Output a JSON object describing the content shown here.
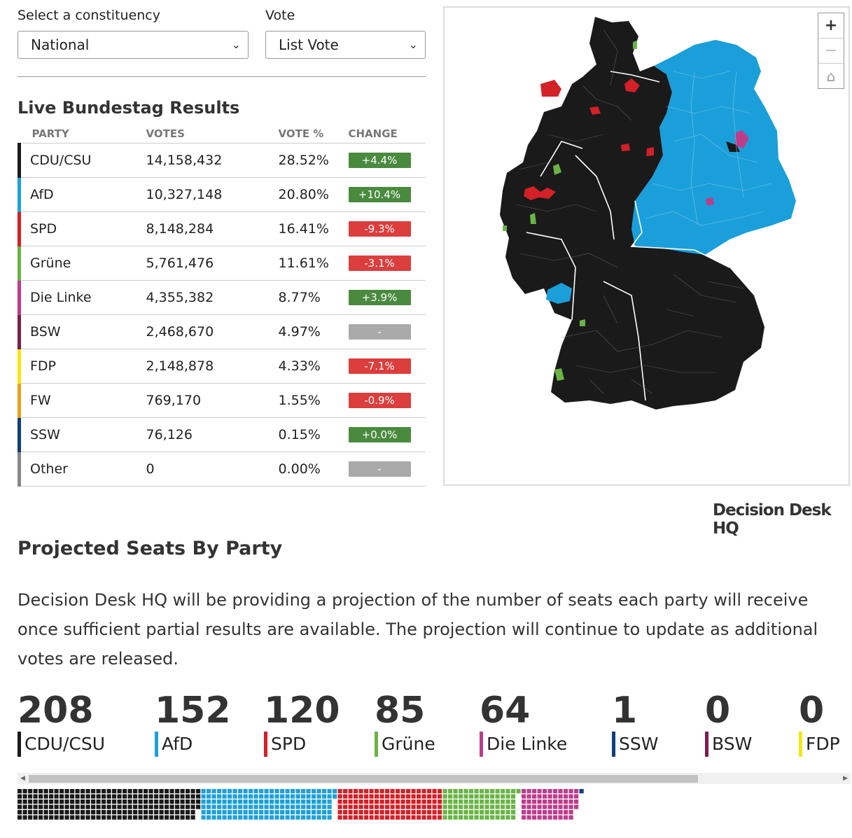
{
  "controls": {
    "constituency_label": "Select a constituency",
    "constituency_value": "National",
    "vote_label": "Vote",
    "vote_value": "List Vote"
  },
  "results": {
    "title": "Live Bundestag Results",
    "headers": {
      "party": "PARTY",
      "votes": "VOTES",
      "pct": "VOTE %",
      "change": "CHANGE"
    },
    "rows": [
      {
        "party": "CDU/CSU",
        "votes": "14,158,432",
        "pct": "28.52%",
        "change": "+4.4%",
        "color": "#1a1a1a",
        "change_color": "#4a8a3f"
      },
      {
        "party": "AfD",
        "votes": "10,327,148",
        "pct": "20.80%",
        "change": "+10.4%",
        "color": "#1ea0d9",
        "change_color": "#4a8a3f"
      },
      {
        "party": "SPD",
        "votes": "8,148,284",
        "pct": "16.41%",
        "change": "-9.3%",
        "color": "#d42027",
        "change_color": "#dc3d3d"
      },
      {
        "party": "Grüne",
        "votes": "5,761,476",
        "pct": "11.61%",
        "change": "-3.1%",
        "color": "#6ab446",
        "change_color": "#dc3d3d"
      },
      {
        "party": "Die Linke",
        "votes": "4,355,382",
        "pct": "8.77%",
        "change": "+3.9%",
        "color": "#be3c8c",
        "change_color": "#4a8a3f"
      },
      {
        "party": "BSW",
        "votes": "2,468,670",
        "pct": "4.97%",
        "change": "-",
        "color": "#7a1f4b",
        "change_color": "#aaaaaa"
      },
      {
        "party": "FDP",
        "votes": "2,148,878",
        "pct": "4.33%",
        "change": "-7.1%",
        "color": "#f5e60f",
        "change_color": "#dc3d3d"
      },
      {
        "party": "FW",
        "votes": "769,170",
        "pct": "1.55%",
        "change": "-0.9%",
        "color": "#e8a01e",
        "change_color": "#dc3d3d"
      },
      {
        "party": "SSW",
        "votes": "76,126",
        "pct": "0.15%",
        "change": "+0.0%",
        "color": "#133c7c",
        "change_color": "#4a8a3f"
      },
      {
        "party": "Other",
        "votes": "0",
        "pct": "0.00%",
        "change": "-",
        "color": "#888888",
        "change_color": "#aaaaaa"
      }
    ]
  },
  "map": {
    "zoom_in": "+",
    "zoom_out": "−",
    "home_icon": "home-icon",
    "colors": {
      "cdu": "#1a1a1a",
      "afd": "#1ea0d9",
      "spd": "#d42027",
      "gruene": "#6ab446",
      "linke": "#be3c8c"
    }
  },
  "brand": "Decision Desk HQ",
  "seats": {
    "title": "Projected Seats By Party",
    "description": "Decision Desk HQ will be providing a projection of the number of seats each party will receive once sufficient partial results are available. The projection will continue to update as additional votes are released.",
    "parties": [
      {
        "seats": "208",
        "name": "CDU/CSU",
        "color": "#1a1a1a"
      },
      {
        "seats": "152",
        "name": "AfD",
        "color": "#1ea0d9"
      },
      {
        "seats": "120",
        "name": "SPD",
        "color": "#d42027"
      },
      {
        "seats": "85",
        "name": "Grüne",
        "color": "#6ab446"
      },
      {
        "seats": "64",
        "name": "Die Linke",
        "color": "#be3c8c"
      },
      {
        "seats": "1",
        "name": "SSW",
        "color": "#133c7c"
      },
      {
        "seats": "0",
        "name": "BSW",
        "color": "#7a1f4b"
      },
      {
        "seats": "0",
        "name": "FDP",
        "color": "#f5e60f"
      }
    ]
  }
}
